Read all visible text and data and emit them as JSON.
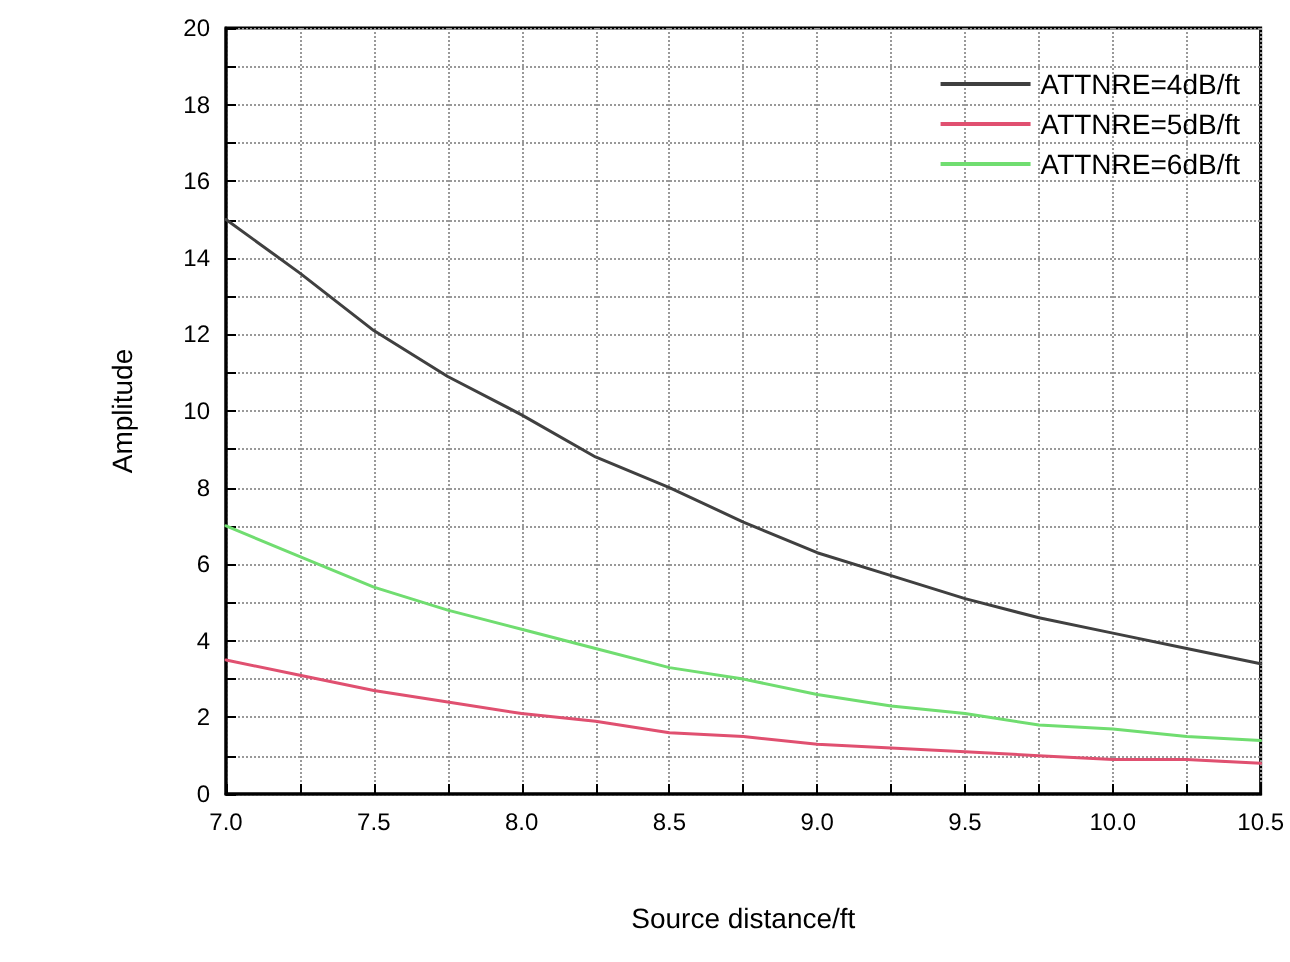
{
  "chart_data": {
    "type": "line",
    "xlabel": "Source distance/ft",
    "ylabel": "Amplitude",
    "x": [
      7.0,
      7.25,
      7.5,
      7.75,
      8.0,
      8.25,
      8.5,
      8.75,
      9.0,
      9.25,
      9.5,
      9.75,
      10.0,
      10.25,
      10.5
    ],
    "series": [
      {
        "name": "ATTNRE=4dB/ft",
        "color": "#404040",
        "values": [
          15.0,
          13.6,
          12.1,
          10.9,
          9.9,
          8.8,
          8.0,
          7.1,
          6.3,
          5.7,
          5.1,
          4.6,
          4.2,
          3.8,
          3.4
        ]
      },
      {
        "name": "ATTNRE=5dB/ft",
        "color": "#e05070",
        "values": [
          3.5,
          3.1,
          2.7,
          2.4,
          2.1,
          1.9,
          1.6,
          1.5,
          1.3,
          1.2,
          1.1,
          1.0,
          0.9,
          0.9,
          0.8
        ]
      },
      {
        "name": "ATTNRE=6dB/ft",
        "color": "#70dd70",
        "values": [
          7.0,
          6.2,
          5.4,
          4.8,
          4.3,
          3.8,
          3.3,
          3.0,
          2.6,
          2.3,
          2.1,
          1.8,
          1.7,
          1.5,
          1.4
        ]
      }
    ],
    "xlim": [
      7.0,
      10.5
    ],
    "xticks": [
      {
        "value": 7.0,
        "label": "7.0"
      },
      {
        "value": 7.25,
        "label": null
      },
      {
        "value": 7.5,
        "label": "7.5"
      },
      {
        "value": 7.75,
        "label": null
      },
      {
        "value": 8.0,
        "label": "8.0"
      },
      {
        "value": 8.25,
        "label": null
      },
      {
        "value": 8.5,
        "label": "8.5"
      },
      {
        "value": 8.75,
        "label": null
      },
      {
        "value": 9.0,
        "label": "9.0"
      },
      {
        "value": 9.25,
        "label": null
      },
      {
        "value": 9.5,
        "label": "9.5"
      },
      {
        "value": 9.75,
        "label": null
      },
      {
        "value": 10.0,
        "label": "10.0"
      },
      {
        "value": 10.25,
        "label": null
      },
      {
        "value": 10.5,
        "label": "10.5"
      }
    ],
    "ylim": [
      0,
      20
    ],
    "yticks": [
      0,
      {
        "value": 1,
        "label": null
      },
      2,
      {
        "value": 3,
        "label": null
      },
      4,
      {
        "value": 5,
        "label": null
      },
      6,
      {
        "value": 7,
        "label": null
      },
      8,
      {
        "value": 9,
        "label": null
      },
      10,
      {
        "value": 11,
        "label": null
      },
      12,
      {
        "value": 13,
        "label": null
      },
      14,
      {
        "value": 15,
        "label": null
      },
      16,
      {
        "value": 17,
        "label": null
      },
      18,
      {
        "value": 19,
        "label": null
      },
      20
    ],
    "grid": true,
    "legend": "top right",
    "marker": "none",
    "line_style": "solid"
  }
}
